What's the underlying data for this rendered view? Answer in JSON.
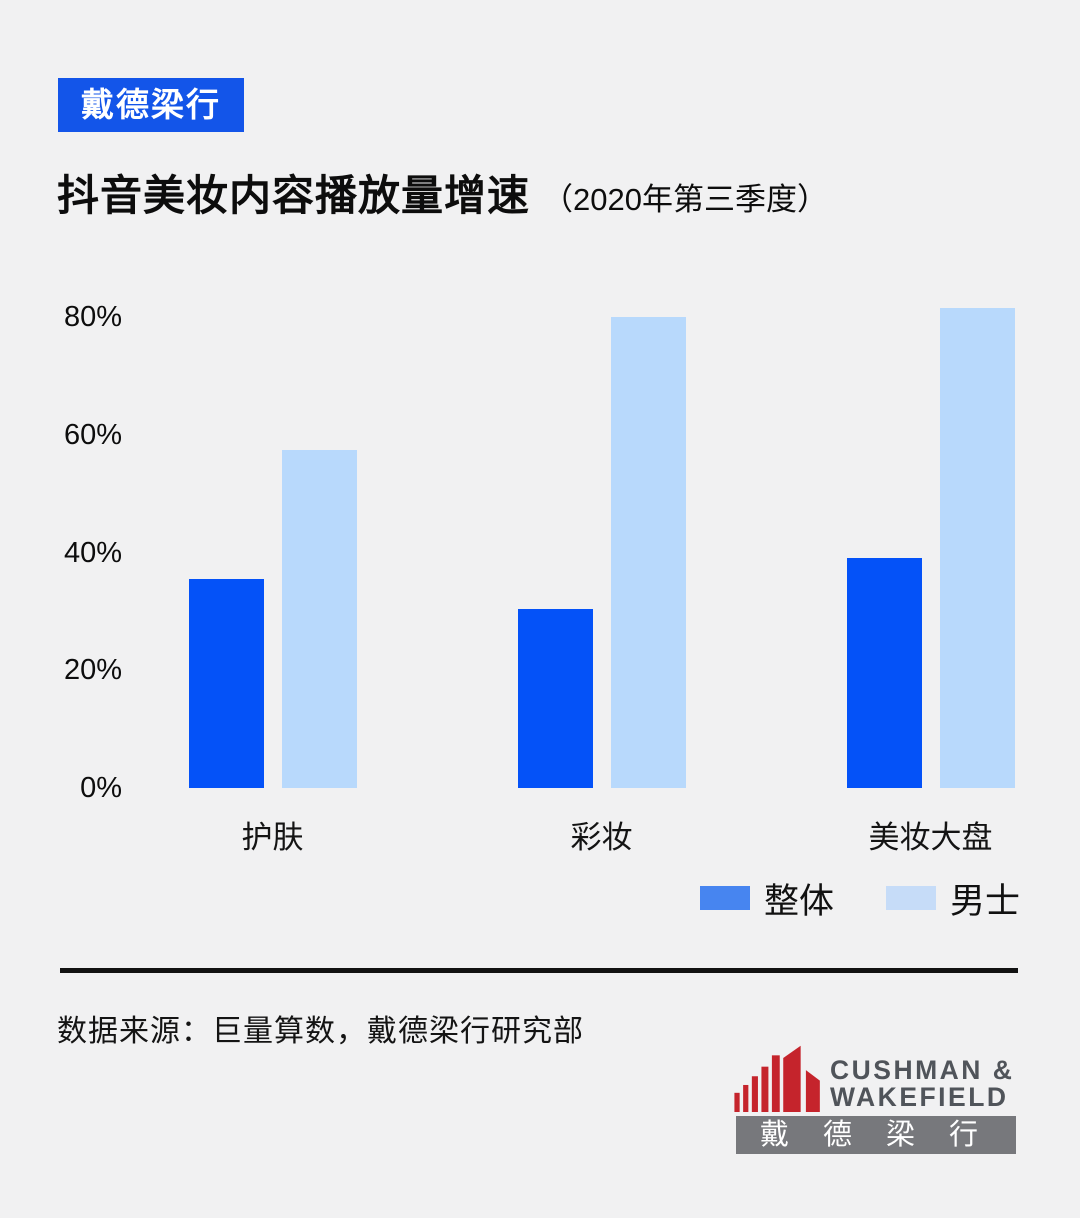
{
  "page": {
    "background": "#f1f1f2"
  },
  "badge": {
    "label": "戴德梁行",
    "background": "#1355e9",
    "text_color": "#ffffff"
  },
  "title": {
    "main": "抖音美妆内容播放量增速",
    "sub": "（2020年第三季度）"
  },
  "chart_data": {
    "type": "bar",
    "title": "抖音美妆内容播放量增速（2020年第三季度）",
    "categories": [
      "护肤",
      "彩妆",
      "美妆大盘"
    ],
    "category_slugs": [
      "skincare",
      "color-makeup",
      "beauty-overall"
    ],
    "series": [
      {
        "name": "整体",
        "slug": "overall",
        "color": "#0452f8",
        "legend_color": "#4785f0",
        "values": [
          35.5,
          30.5,
          39
        ]
      },
      {
        "name": "男士",
        "slug": "men",
        "color": "#b8d9fc",
        "legend_color": "#c6dcf8",
        "values": [
          57.5,
          80,
          81.5
        ]
      }
    ],
    "unit": "%",
    "xlabel": "",
    "ylabel": "",
    "ylim": [
      0,
      84
    ],
    "yticks": {
      "values": [
        0,
        20,
        40,
        60,
        80
      ],
      "labels": [
        "0%",
        "20%",
        "40%",
        "60%",
        "80%"
      ]
    },
    "grid": false,
    "legend_position": "bottom-right"
  },
  "footer": {
    "source": "数据来源：巨量算数，戴德梁行研究部"
  },
  "logo": {
    "name1": "CUSHMAN &",
    "name2": "WAKEFIELD",
    "banner": "戴德梁行",
    "red": "#c5242c",
    "banner_gray": "#77787c",
    "text_gray": "#50545a"
  }
}
